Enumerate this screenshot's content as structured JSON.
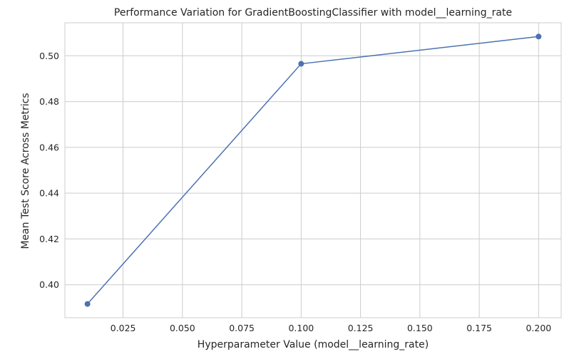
{
  "chart_data": {
    "type": "line",
    "title": "Performance Variation for GradientBoostingClassifier with model__learning_rate",
    "xlabel": "Hyperparameter Value (model__learning_rate)",
    "ylabel": "Mean Test Score Across Metrics",
    "x": [
      0.01,
      0.1,
      0.2
    ],
    "series": [
      {
        "values": [
          0.3916,
          0.4965,
          0.5084
        ]
      }
    ],
    "xticks": [
      0.025,
      0.05,
      0.075,
      0.1,
      0.125,
      0.15,
      0.175,
      0.2
    ],
    "xtick_labels": [
      "0.025",
      "0.050",
      "0.075",
      "0.100",
      "0.125",
      "0.150",
      "0.175",
      "0.200"
    ],
    "yticks": [
      0.4,
      0.42,
      0.44,
      0.46,
      0.48,
      0.5
    ],
    "ytick_labels": [
      "0.40",
      "0.42",
      "0.44",
      "0.46",
      "0.48",
      "0.50"
    ],
    "xlim": [
      0.0005,
      0.2095
    ],
    "ylim": [
      0.3856,
      0.5144
    ],
    "grid": true,
    "colors": {
      "line": "#4c72b0",
      "grid": "#cccccc",
      "axes": "#cccccc"
    }
  }
}
